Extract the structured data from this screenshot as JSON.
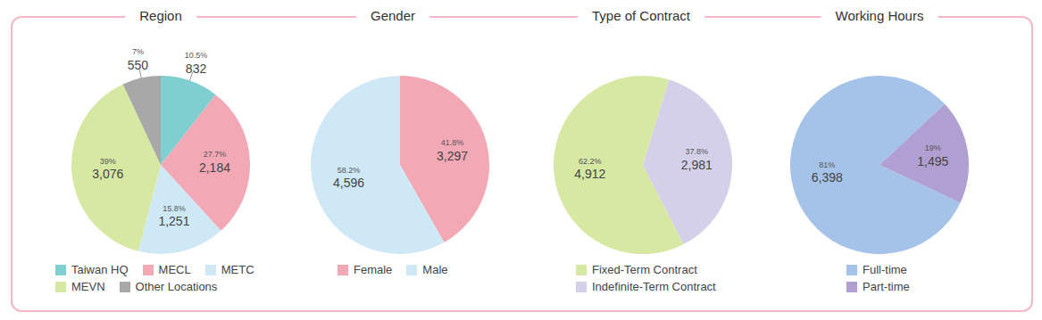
{
  "chart_data": [
    {
      "type": "pie",
      "title": "Region",
      "categories": [
        "Taiwan HQ",
        "MECL",
        "METC",
        "MEVN",
        "Other Locations"
      ],
      "values": [
        832,
        2184,
        1251,
        3076,
        550
      ],
      "value_labels": [
        "832",
        "2,184",
        "1,251",
        "3,076",
        "550"
      ],
      "percentages": [
        10.5,
        27.7,
        15.8,
        39,
        7
      ],
      "percentage_labels": [
        "10.5%",
        "27.7%",
        "15.8%",
        "39%",
        "7%"
      ],
      "colors": [
        "#7fcfd1",
        "#f2a8b5",
        "#cfe8f6",
        "#d6e8a2",
        "#a8a8a8"
      ],
      "legend": "bottom",
      "data_labels": true
    },
    {
      "type": "pie",
      "title": "Gender",
      "categories": [
        "Female",
        "Male"
      ],
      "values": [
        3297,
        4596
      ],
      "value_labels": [
        "3,297",
        "4,596"
      ],
      "percentages": [
        41.8,
        58.2
      ],
      "percentage_labels": [
        "41.8%",
        "58.2%"
      ],
      "colors": [
        "#f2a8b5",
        "#cfe8f6"
      ],
      "legend": "bottom",
      "data_labels": true
    },
    {
      "type": "pie",
      "title": "Type of Contract",
      "categories": [
        "Fixed-Term Contract",
        "Indefinite-Term Contract"
      ],
      "values": [
        4912,
        2981
      ],
      "value_labels": [
        "4,912",
        "2,981"
      ],
      "percentages": [
        62.2,
        37.8
      ],
      "percentage_labels": [
        "62.2%",
        "37.8%"
      ],
      "colors": [
        "#d6e8a2",
        "#d5d0e9"
      ],
      "legend": "bottom",
      "data_labels": true
    },
    {
      "type": "pie",
      "title": "Working Hours",
      "categories": [
        "Full-time",
        "Part-time"
      ],
      "values": [
        6398,
        1495
      ],
      "value_labels": [
        "6,398",
        "1,495"
      ],
      "percentages": [
        81,
        19
      ],
      "percentage_labels": [
        "81%",
        "19%"
      ],
      "colors": [
        "#a5c2e8",
        "#b09fd1"
      ],
      "legend": "bottom",
      "data_labels": true
    }
  ]
}
